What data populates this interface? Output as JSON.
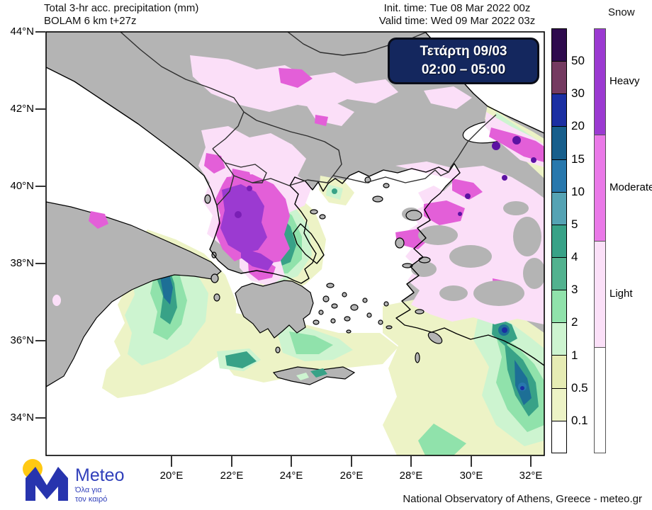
{
  "header": {
    "title_line1": "Total 3-hr acc. precipitation (mm)",
    "title_line2": "BOLAM 6 km t+27z",
    "init_time": "Init. time: Tue 08 Mar 2022 00z",
    "valid_time": "Valid time: Wed 09 Mar 2022 03z",
    "snow_label": "Snow"
  },
  "timebox": {
    "day": "Τετάρτη 09/03",
    "hours": "02:00 – 05:00",
    "background": "#14275e"
  },
  "map": {
    "lat_labels": [
      "44°N",
      "42°N",
      "40°N",
      "38°N",
      "36°N",
      "34°N"
    ],
    "lon_labels": [
      "20°E",
      "22°E",
      "24°E",
      "26°E",
      "28°E",
      "30°E",
      "32°E"
    ]
  },
  "colorbar": {
    "unit": "mm",
    "labels": [
      "50",
      "30",
      "20",
      "15",
      "10",
      "5",
      "4",
      "3",
      "2",
      "1",
      "0.5",
      "0.1"
    ],
    "segment_colors_top_to_bottom": [
      "#2e0b4d",
      "#743a60",
      "#1b2fa2",
      "#175f8c",
      "#2878ad",
      "#55a3b4",
      "#38a287",
      "#52b28f",
      "#90e2ab",
      "#cdf4d0",
      "#e6ecb4",
      "#edf3c6",
      "#ffffff"
    ]
  },
  "snowbar": {
    "title": "Snow",
    "categories": [
      {
        "label": "Heavy",
        "color": "#9b3ad1"
      },
      {
        "label": "Moderate",
        "color": "#ea79e8"
      },
      {
        "label": "Light",
        "color": "#fbe0f8"
      },
      {
        "label": "",
        "color": "#ffffff"
      }
    ]
  },
  "footer": {
    "logo_text": "Meteo",
    "logo_tagline_line1": "Όλα για",
    "logo_tagline_line2": "τον καιρό",
    "attribution": "National Observatory of Athens, Greece - meteo.gr"
  }
}
